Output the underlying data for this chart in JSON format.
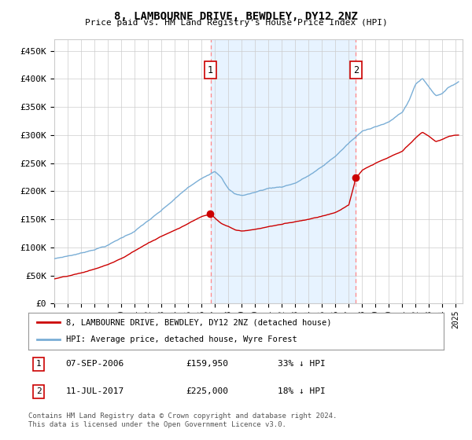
{
  "title": "8, LAMBOURNE DRIVE, BEWDLEY, DY12 2NZ",
  "subtitle": "Price paid vs. HM Land Registry's House Price Index (HPI)",
  "ylabel_ticks": [
    "£0",
    "£50K",
    "£100K",
    "£150K",
    "£200K",
    "£250K",
    "£300K",
    "£350K",
    "£400K",
    "£450K"
  ],
  "ytick_values": [
    0,
    50000,
    100000,
    150000,
    200000,
    250000,
    300000,
    350000,
    400000,
    450000
  ],
  "ylim": [
    0,
    470000
  ],
  "xlim_start": 1995.0,
  "xlim_end": 2025.5,
  "purchase1_date": 2006.67,
  "purchase1_price": 159950,
  "purchase1_label": "1",
  "purchase2_date": 2017.52,
  "purchase2_price": 225000,
  "purchase2_label": "2",
  "hpi_color": "#7aaed6",
  "hpi_fill_color": "#ddeeff",
  "price_color": "#cc0000",
  "vline_color": "#ff8888",
  "grid_color": "#cccccc",
  "background_color": "#ffffff",
  "legend1_text": "8, LAMBOURNE DRIVE, BEWDLEY, DY12 2NZ (detached house)",
  "legend2_text": "HPI: Average price, detached house, Wyre Forest",
  "footer": "Contains HM Land Registry data © Crown copyright and database right 2024.\nThis data is licensed under the Open Government Licence v3.0.",
  "hpi_keypoints_x": [
    1995,
    1997,
    1999,
    2001,
    2002,
    2003,
    2004,
    2005,
    2006,
    2007,
    2007.5,
    2008,
    2008.5,
    2009,
    2010,
    2011,
    2012,
    2013,
    2014,
    2015,
    2016,
    2017,
    2018,
    2019,
    2020,
    2021,
    2021.5,
    2022,
    2022.5,
    2023,
    2023.5,
    2024,
    2024.5,
    2025.2
  ],
  "hpi_keypoints_y": [
    80000,
    90000,
    105000,
    130000,
    148000,
    165000,
    185000,
    205000,
    220000,
    235000,
    225000,
    205000,
    195000,
    192000,
    198000,
    205000,
    208000,
    215000,
    228000,
    243000,
    262000,
    285000,
    305000,
    315000,
    322000,
    340000,
    360000,
    390000,
    400000,
    385000,
    370000,
    375000,
    385000,
    395000
  ],
  "price_keypoints_x": [
    1995,
    1996,
    1997,
    1998,
    1999,
    2000,
    2001,
    2002,
    2003,
    2004,
    2005,
    2006,
    2006.67,
    2007,
    2007.5,
    2008,
    2008.5,
    2009,
    2010,
    2011,
    2012,
    2013,
    2014,
    2015,
    2016,
    2017,
    2017.52,
    2018,
    2019,
    2020,
    2021,
    2022,
    2022.5,
    2023,
    2023.5,
    2024,
    2024.5,
    2025.2
  ],
  "price_keypoints_y": [
    44000,
    48000,
    53000,
    60000,
    68000,
    78000,
    92000,
    106000,
    118000,
    130000,
    142000,
    155000,
    159950,
    153000,
    143000,
    138000,
    132000,
    130000,
    133000,
    138000,
    142000,
    147000,
    152000,
    158000,
    165000,
    178000,
    225000,
    240000,
    252000,
    262000,
    272000,
    295000,
    305000,
    298000,
    288000,
    292000,
    298000,
    300000
  ]
}
